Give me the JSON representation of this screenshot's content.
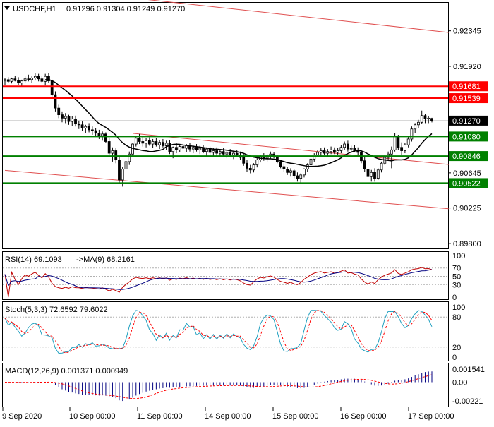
{
  "header": {
    "symbol": "USDCHF,H1",
    "ohlc": "0.91296 0.91304 0.91249 0.91270"
  },
  "colors": {
    "candle": "#000000",
    "ma": "#000000",
    "red_level": "#ff0000",
    "green_level": "#008000",
    "channel": "#e05050",
    "current_price": "#000000",
    "rsi": "#c00000",
    "rsi_ma": "#000080",
    "stoch_main": "#20a0c0",
    "stoch_signal": "#ff0000",
    "macd_hist": "#000080",
    "macd_signal": "#ff0000"
  },
  "chart_data": [
    {
      "type": "candlestick",
      "panel": "price",
      "y_ticks": [
        "0.92345",
        "0.91920",
        "0.91539",
        "0.91270",
        "0.91080",
        "0.90645",
        "0.90225",
        "0.89800"
      ],
      "ylim": [
        0.8974,
        0.9268
      ],
      "x_ticks": [
        "9 Sep 2020",
        "10 Sep 00:00",
        "11 Sep 00:00",
        "14 Sep 00:00",
        "15 Sep 00:00",
        "16 Sep 00:00",
        "17 Sep 00:00"
      ],
      "levels": [
        {
          "label": "0.91681",
          "value": 0.91681,
          "color": "red"
        },
        {
          "label": "0.91539",
          "value": 0.91539,
          "color": "red"
        },
        {
          "label": "0.91080",
          "value": 0.9108,
          "color": "green"
        },
        {
          "label": "0.90846",
          "value": 0.90846,
          "color": "green"
        },
        {
          "label": "0.90522",
          "value": 0.90522,
          "color": "green"
        }
      ],
      "current_price": {
        "label": "0.91270",
        "value": 0.9127
      },
      "channel_lines": [
        {
          "from": [
            0,
            0.92905
          ],
          "to": [
            132,
            0.92325
          ]
        },
        {
          "from": [
            0,
            0.90675
          ],
          "to": [
            132,
            0.90215
          ]
        },
        {
          "from": [
            38,
            0.91118
          ],
          "to": [
            132,
            0.90745
          ]
        }
      ],
      "candles": [
        [
          0.91745,
          0.9178,
          0.9169,
          0.9176
        ],
        [
          0.9176,
          0.9179,
          0.9172,
          0.9174
        ],
        [
          0.9174,
          0.91785,
          0.91715,
          0.9177
        ],
        [
          0.9177,
          0.9181,
          0.9174,
          0.9175
        ],
        [
          0.9175,
          0.9179,
          0.917,
          0.9172
        ],
        [
          0.9172,
          0.9176,
          0.9168,
          0.91745
        ],
        [
          0.91745,
          0.918,
          0.9172,
          0.9177
        ],
        [
          0.9177,
          0.9182,
          0.9174,
          0.9176
        ],
        [
          0.9176,
          0.918,
          0.9172,
          0.9178
        ],
        [
          0.9178,
          0.9184,
          0.9175,
          0.918
        ],
        [
          0.918,
          0.9183,
          0.9174,
          0.9177
        ],
        [
          0.9177,
          0.9181,
          0.9172,
          0.9174
        ],
        [
          0.9174,
          0.9183,
          0.9169,
          0.918
        ],
        [
          0.918,
          0.9184,
          0.9172,
          0.91745
        ],
        [
          0.91745,
          0.9176,
          0.9156,
          0.9158
        ],
        [
          0.9158,
          0.9162,
          0.9138,
          0.9142
        ],
        [
          0.9142,
          0.9146,
          0.913,
          0.9134
        ],
        [
          0.9134,
          0.9138,
          0.9125,
          0.913
        ],
        [
          0.913,
          0.9136,
          0.9124,
          0.9132
        ],
        [
          0.9132,
          0.9134,
          0.9122,
          0.9126
        ],
        [
          0.9126,
          0.9132,
          0.9121,
          0.9129
        ],
        [
          0.9129,
          0.9133,
          0.912,
          0.9123
        ],
        [
          0.9123,
          0.9127,
          0.9117,
          0.9122
        ],
        [
          0.9122,
          0.9126,
          0.9115,
          0.9118
        ],
        [
          0.9118,
          0.9122,
          0.9112,
          0.912
        ],
        [
          0.912,
          0.9124,
          0.9113,
          0.9116
        ],
        [
          0.9116,
          0.912,
          0.911,
          0.9115
        ],
        [
          0.9115,
          0.9118,
          0.9109,
          0.9112
        ],
        [
          0.9112,
          0.9116,
          0.9105,
          0.9109
        ],
        [
          0.9109,
          0.9114,
          0.9103,
          0.9111
        ],
        [
          0.9111,
          0.9113,
          0.91,
          0.9102
        ],
        [
          0.9102,
          0.9106,
          0.9086,
          0.9088
        ],
        [
          0.9088,
          0.9095,
          0.9078,
          0.9091
        ],
        [
          0.9091,
          0.9094,
          0.9076,
          0.908
        ],
        [
          0.908,
          0.9083,
          0.9052,
          0.9056
        ],
        [
          0.9056,
          0.9072,
          0.9048,
          0.9069
        ],
        [
          0.9069,
          0.9082,
          0.9064,
          0.9078
        ],
        [
          0.9078,
          0.909,
          0.9074,
          0.9087
        ],
        [
          0.9087,
          0.91,
          0.9085,
          0.9099
        ],
        [
          0.9099,
          0.9108,
          0.9096,
          0.9106
        ],
        [
          0.9106,
          0.9111,
          0.9099,
          0.9102
        ],
        [
          0.9102,
          0.9108,
          0.9096,
          0.91
        ],
        [
          0.91,
          0.9106,
          0.9095,
          0.9103
        ],
        [
          0.9103,
          0.9107,
          0.9097,
          0.9099
        ],
        [
          0.9099,
          0.9105,
          0.9094,
          0.9102
        ],
        [
          0.9102,
          0.9106,
          0.9096,
          0.9098
        ],
        [
          0.9098,
          0.9104,
          0.9093,
          0.9101
        ],
        [
          0.9101,
          0.9105,
          0.9095,
          0.9097
        ],
        [
          0.9097,
          0.9103,
          0.9092,
          0.91
        ],
        [
          0.91,
          0.9104,
          0.9087,
          0.909
        ],
        [
          0.909,
          0.9096,
          0.9082,
          0.9095
        ],
        [
          0.9095,
          0.91,
          0.9088,
          0.9092
        ],
        [
          0.9092,
          0.9099,
          0.9089,
          0.9096
        ],
        [
          0.9096,
          0.91,
          0.9091,
          0.9094
        ],
        [
          0.9094,
          0.9099,
          0.9089,
          0.9097
        ],
        [
          0.9097,
          0.91,
          0.909,
          0.9093
        ],
        [
          0.9093,
          0.9098,
          0.9088,
          0.9095
        ],
        [
          0.9095,
          0.9099,
          0.909,
          0.9092
        ],
        [
          0.9092,
          0.9097,
          0.9087,
          0.9094
        ],
        [
          0.9094,
          0.9098,
          0.9088,
          0.909
        ],
        [
          0.909,
          0.9095,
          0.9085,
          0.9093
        ],
        [
          0.9093,
          0.9096,
          0.9086,
          0.9089
        ],
        [
          0.9089,
          0.9094,
          0.9084,
          0.9091
        ],
        [
          0.9091,
          0.9095,
          0.9085,
          0.9088
        ],
        [
          0.9088,
          0.9093,
          0.9083,
          0.909
        ],
        [
          0.909,
          0.9094,
          0.9085,
          0.9087
        ],
        [
          0.9087,
          0.9092,
          0.9082,
          0.9089
        ],
        [
          0.9089,
          0.9093,
          0.9084,
          0.9086
        ],
        [
          0.9086,
          0.9091,
          0.9081,
          0.9088
        ],
        [
          0.9088,
          0.9092,
          0.9084,
          0.9086
        ],
        [
          0.9086,
          0.909,
          0.908,
          0.9083
        ],
        [
          0.9083,
          0.9087,
          0.9073,
          0.9076
        ],
        [
          0.9076,
          0.908,
          0.9066,
          0.907
        ],
        [
          0.907,
          0.9074,
          0.9064,
          0.9068
        ],
        [
          0.9068,
          0.9076,
          0.9065,
          0.9074
        ],
        [
          0.9074,
          0.9082,
          0.9071,
          0.908
        ],
        [
          0.908,
          0.9086,
          0.9077,
          0.9084
        ],
        [
          0.9084,
          0.9088,
          0.9079,
          0.9082
        ],
        [
          0.9082,
          0.9087,
          0.9078,
          0.9085
        ],
        [
          0.9085,
          0.909,
          0.9081,
          0.9087
        ],
        [
          0.9087,
          0.9089,
          0.9082,
          0.9084
        ],
        [
          0.9084,
          0.9086,
          0.9076,
          0.9078
        ],
        [
          0.9078,
          0.908,
          0.907,
          0.9072
        ],
        [
          0.9072,
          0.9076,
          0.9066,
          0.9069
        ],
        [
          0.9069,
          0.9072,
          0.9062,
          0.9065
        ],
        [
          0.9065,
          0.907,
          0.906,
          0.9067
        ],
        [
          0.9067,
          0.9069,
          0.9058,
          0.9061
        ],
        [
          0.9061,
          0.9065,
          0.9054,
          0.9058
        ],
        [
          0.9058,
          0.9064,
          0.9052,
          0.9062
        ],
        [
          0.9062,
          0.907,
          0.9059,
          0.9069
        ],
        [
          0.9069,
          0.9076,
          0.9066,
          0.9074
        ],
        [
          0.9074,
          0.9083,
          0.9072,
          0.9081
        ],
        [
          0.9081,
          0.9088,
          0.9078,
          0.9086
        ],
        [
          0.9086,
          0.9092,
          0.9083,
          0.9089
        ],
        [
          0.9089,
          0.9094,
          0.9085,
          0.9091
        ],
        [
          0.9091,
          0.9095,
          0.9086,
          0.9088
        ],
        [
          0.9088,
          0.9093,
          0.9085,
          0.909
        ],
        [
          0.909,
          0.9096,
          0.9087,
          0.9092
        ],
        [
          0.9092,
          0.9095,
          0.9087,
          0.9089
        ],
        [
          0.9089,
          0.9094,
          0.9086,
          0.9091
        ],
        [
          0.9091,
          0.9098,
          0.9088,
          0.9095
        ],
        [
          0.9095,
          0.9102,
          0.9092,
          0.9099
        ],
        [
          0.9099,
          0.9103,
          0.909,
          0.9093
        ],
        [
          0.9093,
          0.9097,
          0.9088,
          0.9094
        ],
        [
          0.9094,
          0.9098,
          0.9089,
          0.9091
        ],
        [
          0.9091,
          0.9095,
          0.9086,
          0.9089
        ],
        [
          0.9089,
          0.9092,
          0.9076,
          0.9079
        ],
        [
          0.9079,
          0.9083,
          0.9066,
          0.9069
        ],
        [
          0.9069,
          0.9073,
          0.9056,
          0.906
        ],
        [
          0.906,
          0.9068,
          0.9054,
          0.9065
        ],
        [
          0.9065,
          0.907,
          0.9054,
          0.9058
        ],
        [
          0.9058,
          0.907,
          0.9056,
          0.9068
        ],
        [
          0.9068,
          0.9078,
          0.9065,
          0.9076
        ],
        [
          0.9076,
          0.9086,
          0.9074,
          0.9083
        ],
        [
          0.9083,
          0.909,
          0.9079,
          0.9087
        ],
        [
          0.9087,
          0.9096,
          0.907,
          0.9092
        ],
        [
          0.9092,
          0.9112,
          0.909,
          0.9108
        ],
        [
          0.9108,
          0.911,
          0.9092,
          0.9095
        ],
        [
          0.9095,
          0.9101,
          0.9086,
          0.9091
        ],
        [
          0.9091,
          0.91,
          0.9088,
          0.9098
        ],
        [
          0.9098,
          0.9108,
          0.9095,
          0.9105
        ],
        [
          0.9105,
          0.912,
          0.9102,
          0.9117
        ],
        [
          0.9117,
          0.9124,
          0.9112,
          0.9122
        ],
        [
          0.9122,
          0.9128,
          0.9118,
          0.9125
        ],
        [
          0.9125,
          0.9139,
          0.9123,
          0.9133
        ],
        [
          0.9133,
          0.9135,
          0.9124,
          0.9129
        ],
        [
          0.9129,
          0.9132,
          0.9124,
          0.913
        ],
        [
          0.91296,
          0.91304,
          0.91249,
          0.9127
        ]
      ]
    },
    {
      "type": "line",
      "panel": "rsi",
      "label": "RSI(14) 69.1093",
      "ma_label": "->MA(9) 68.2161",
      "y_ticks": [
        "100",
        "70",
        "50",
        "30",
        "0"
      ],
      "ylim": [
        0,
        100
      ]
    },
    {
      "type": "line",
      "panel": "stochastic",
      "label": "Stoch(5,3,3) 72.6592 79.6022",
      "y_ticks": [
        "100",
        "80",
        "20",
        "0"
      ],
      "ylim": [
        0,
        100
      ]
    },
    {
      "type": "bar",
      "panel": "macd",
      "label": "MACD(12,26,9) 0.001371 0.000949",
      "y_ticks": [
        "0.001541",
        "0.00",
        "-0.00221"
      ],
      "ylim": [
        -0.00221,
        0.001541
      ]
    }
  ]
}
